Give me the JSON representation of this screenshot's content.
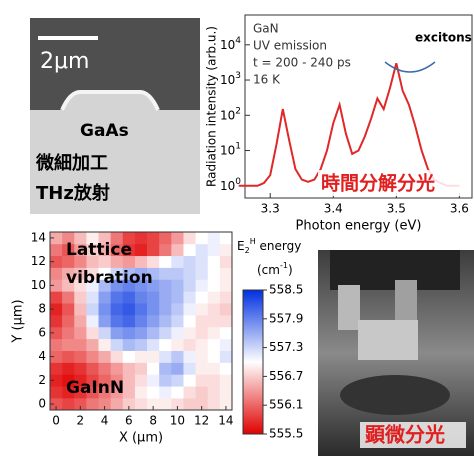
{
  "sem_panel": {
    "scale_bar": "2μm",
    "material": "GaAs",
    "caption": [
      "微細加工",
      "THz放射"
    ]
  },
  "photo_panel": {
    "caption": "顕微分光"
  },
  "chart_data": [
    {
      "type": "line",
      "ylabel": "Radiation intensity (arb.u.)",
      "xlabel": "Photon energy (eV)",
      "annotations": [
        "GaN",
        "UV emission",
        "t = 200 - 240 ps",
        "16 K"
      ],
      "callout": "excitons",
      "caption": "時間分解分光",
      "log_y": true,
      "x": [
        3.25,
        3.26,
        3.27,
        3.28,
        3.29,
        3.3,
        3.31,
        3.32,
        3.33,
        3.34,
        3.35,
        3.36,
        3.37,
        3.38,
        3.39,
        3.4,
        3.41,
        3.42,
        3.43,
        3.44,
        3.45,
        3.46,
        3.47,
        3.48,
        3.49,
        3.5,
        3.51,
        3.52,
        3.53,
        3.54,
        3.55,
        3.56,
        3.57,
        3.58,
        3.59,
        3.6
      ],
      "series": [
        {
          "color": "#e02828",
          "values": [
            1,
            1,
            1,
            1,
            1.2,
            2,
            15,
            150,
            20,
            3,
            1.5,
            1.3,
            1.5,
            3,
            10,
            60,
            200,
            30,
            8,
            10,
            25,
            80,
            300,
            150,
            600,
            3000,
            500,
            200,
            50,
            10,
            3,
            1.5,
            1.2,
            1,
            1,
            1
          ]
        }
      ],
      "xlim": [
        3.26,
        3.62
      ],
      "xticks": [
        3.3,
        3.4,
        3.5,
        3.6
      ],
      "ylim": [
        0.45,
        70000
      ],
      "yticks": [
        {
          "value": 1,
          "label": "10",
          "exponent": "0"
        },
        {
          "value": 10,
          "label": "10",
          "exponent": "1"
        },
        {
          "value": 100,
          "label": "10",
          "exponent": "2"
        },
        {
          "value": 1000,
          "label": "10",
          "exponent": "3"
        },
        {
          "value": 10000,
          "label": "10",
          "exponent": "4"
        }
      ]
    },
    {
      "type": "heatmap",
      "xlabel": "X (μm)",
      "ylabel": "Y (μm)",
      "annotations": [
        "Lattice",
        "vibration",
        "GaInN"
      ],
      "x": [
        0,
        1,
        2,
        3,
        4,
        5,
        6,
        7,
        8,
        9,
        10,
        11,
        12,
        13,
        14
      ],
      "y": [
        0,
        1,
        2,
        3,
        4,
        5,
        6,
        7,
        8,
        9,
        10,
        11,
        12,
        13,
        14
      ],
      "z": [
        [
          556.0,
          555.9,
          556.0,
          556.2,
          556.3,
          556.5,
          556.7,
          556.8,
          556.9,
          556.9,
          556.8,
          556.7,
          556.7,
          556.8,
          556.9
        ],
        [
          555.8,
          555.7,
          555.8,
          556.0,
          556.2,
          556.4,
          556.6,
          556.9,
          557.0,
          557.1,
          557.0,
          556.8,
          556.7,
          556.8,
          556.9
        ],
        [
          555.7,
          555.6,
          555.7,
          555.9,
          556.1,
          556.3,
          556.6,
          556.8,
          557.1,
          557.4,
          557.3,
          557.0,
          556.8,
          556.8,
          556.9
        ],
        [
          555.8,
          555.7,
          555.8,
          556.0,
          556.2,
          556.4,
          556.6,
          556.7,
          557.0,
          557.5,
          557.6,
          557.2,
          556.9,
          556.9,
          557.0
        ],
        [
          556.1,
          556.0,
          556.1,
          556.3,
          556.5,
          556.8,
          557.0,
          556.9,
          556.9,
          557.2,
          557.4,
          557.1,
          556.9,
          557.0,
          557.2
        ],
        [
          556.2,
          556.3,
          556.3,
          556.5,
          556.9,
          557.3,
          557.5,
          557.4,
          557.2,
          557.0,
          556.9,
          556.8,
          556.9,
          557.0,
          557.1
        ],
        [
          556.0,
          556.2,
          556.4,
          556.8,
          557.3,
          557.7,
          557.8,
          557.7,
          557.5,
          557.3,
          557.1,
          556.9,
          556.8,
          556.9,
          557.0
        ],
        [
          555.8,
          556.1,
          556.5,
          557.1,
          557.7,
          558.0,
          558.1,
          557.9,
          557.7,
          557.5,
          557.3,
          557.0,
          556.8,
          556.8,
          556.8
        ],
        [
          555.7,
          556.0,
          556.6,
          557.3,
          557.8,
          558.1,
          558.2,
          558.0,
          557.8,
          557.6,
          557.4,
          557.1,
          556.9,
          556.8,
          556.7
        ],
        [
          555.9,
          556.2,
          556.7,
          557.2,
          557.7,
          558.0,
          558.1,
          557.9,
          557.8,
          557.6,
          557.5,
          557.2,
          557.0,
          556.9,
          556.8
        ],
        [
          556.4,
          556.6,
          556.8,
          557.1,
          557.5,
          557.8,
          557.9,
          557.8,
          557.7,
          557.6,
          557.5,
          557.3,
          557.1,
          557.0,
          556.9
        ],
        [
          556.3,
          556.5,
          556.6,
          556.8,
          557.0,
          557.3,
          557.5,
          557.6,
          557.5,
          557.4,
          557.4,
          557.3,
          557.2,
          557.0,
          556.9
        ],
        [
          556.0,
          556.1,
          556.3,
          556.6,
          556.7,
          556.5,
          556.4,
          556.6,
          556.8,
          557.0,
          557.2,
          557.3,
          557.2,
          557.0,
          556.8
        ],
        [
          556.2,
          556.0,
          556.4,
          556.7,
          556.5,
          556.1,
          555.8,
          555.7,
          555.9,
          556.2,
          556.6,
          557.0,
          557.2,
          557.1,
          556.9
        ],
        [
          556.5,
          556.3,
          556.6,
          556.9,
          556.6,
          556.2,
          555.9,
          555.8,
          555.9,
          556.1,
          556.4,
          556.8,
          557.0,
          557.1,
          557.0
        ]
      ],
      "xlim": [
        -0.5,
        14.5
      ],
      "ylim": [
        -0.5,
        14.5
      ],
      "xticks": [
        0,
        2,
        4,
        6,
        8,
        10,
        12,
        14
      ],
      "yticks": [
        0,
        2,
        4,
        6,
        8,
        10,
        12,
        14
      ],
      "colorbar": {
        "title": [
          "E",
          "2",
          "H",
          " energy"
        ],
        "unit": [
          "(cm",
          "-1",
          ")"
        ],
        "lim": [
          555.5,
          558.5
        ],
        "ticks": [
          558.5,
          557.9,
          557.3,
          556.7,
          556.1,
          555.5
        ],
        "colors": [
          "#e00000",
          "#ffffff",
          "#0030e0"
        ]
      }
    }
  ]
}
